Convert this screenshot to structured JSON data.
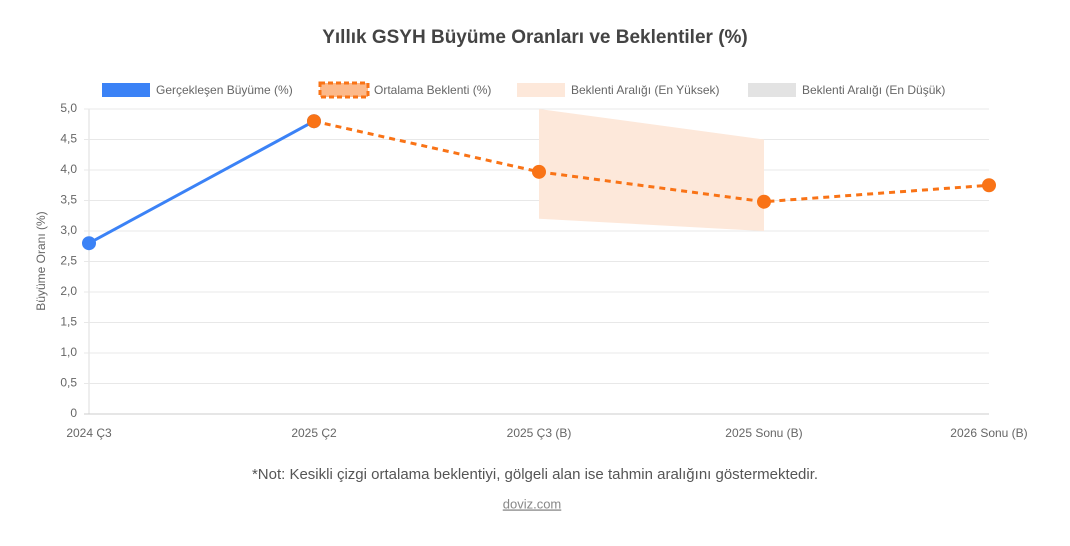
{
  "chart_data": {
    "type": "line",
    "title": "Yıllık GSYH Büyüme Oranları ve Beklentiler (%)",
    "y_label": "Büyüme Oranı (%)",
    "categories": [
      "2024 Ç3",
      "2025 Ç2",
      "2025 Ç3 (B)",
      "2025 Sonu (B)",
      "2026 Sonu (B)"
    ],
    "series": [
      {
        "name": "Gerçekleşen Büyüme (%)",
        "color": "#3b82f6",
        "style": "solid",
        "values": [
          2.8,
          4.8,
          null,
          null,
          null
        ]
      },
      {
        "name": "Ortalama Beklenti (%)",
        "color": "#f97316",
        "style": "dashed",
        "values": [
          null,
          4.8,
          3.97,
          3.48,
          3.75
        ]
      },
      {
        "name": "Beklenti Aralığı (En Yüksek)",
        "color": "#fde8da",
        "style": "band",
        "values": [
          null,
          null,
          5.0,
          4.5,
          null
        ]
      },
      {
        "name": "Beklenti Aralığı (En Düşük)",
        "color": "#e3e3e3",
        "style": "band",
        "values": [
          null,
          null,
          3.2,
          3.0,
          null
        ]
      }
    ],
    "ylim": [
      0,
      5
    ],
    "yticks": [
      0,
      {
        "value": 0.5,
        "label": "0,5"
      },
      {
        "value": 1,
        "label": "1,0"
      },
      {
        "value": 1.5,
        "label": "1,5"
      },
      {
        "value": 2,
        "label": "2,0"
      },
      {
        "value": 2.5,
        "label": "2,5"
      },
      {
        "value": 3,
        "label": "3,0"
      },
      {
        "value": 3.5,
        "label": "3,5"
      },
      {
        "value": 4,
        "label": "4,0"
      },
      {
        "value": 4.5,
        "label": "4,5"
      },
      {
        "value": 5,
        "label": "5,0"
      }
    ],
    "grid": true,
    "legend": "top",
    "note": "*Not: Kesikli çizgi ortalama beklentiyi, gölgeli alan ise tahmin aralığını göstermektedir.",
    "source": "doviz.com"
  }
}
